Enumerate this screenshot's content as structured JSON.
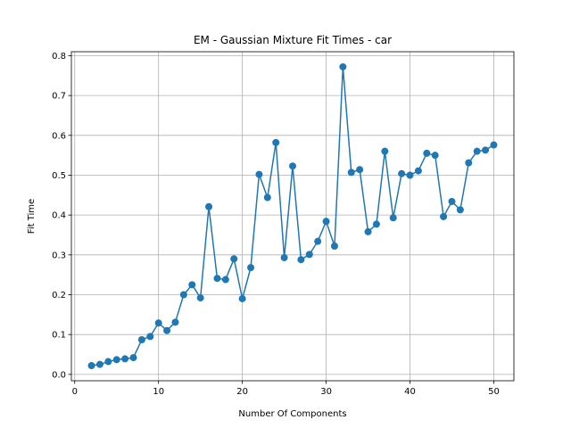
{
  "chart_data": {
    "type": "line",
    "title": "EM - Gaussian Mixture Fit Times - car",
    "xlabel": "Number Of Components",
    "ylabel": "Fit Time",
    "xlim": [
      -0.4,
      52.4
    ],
    "ylim": [
      -0.016,
      0.81
    ],
    "xticks": [
      0,
      10,
      20,
      30,
      40,
      50
    ],
    "yticks": [
      0.0,
      0.1,
      0.2,
      0.3,
      0.4,
      0.5,
      0.6,
      0.7,
      0.8
    ],
    "xtick_labels": [
      "0",
      "10",
      "20",
      "30",
      "40",
      "50"
    ],
    "ytick_labels": [
      "0.0",
      "0.1",
      "0.2",
      "0.3",
      "0.4",
      "0.5",
      "0.6",
      "0.7",
      "0.8"
    ],
    "grid": true,
    "marker": "circle",
    "color": "#1f77b4",
    "series": [
      {
        "x": [
          2,
          3,
          4,
          5,
          6,
          7,
          8,
          9,
          10,
          11,
          12,
          13,
          14,
          15,
          16,
          17,
          18,
          19,
          20,
          21,
          22,
          23,
          24,
          25,
          26,
          27,
          28,
          29,
          30,
          31,
          32,
          33,
          34,
          35,
          36,
          37,
          38,
          39,
          40,
          41,
          42,
          43,
          44,
          45,
          46,
          47,
          48,
          49,
          50
        ],
        "values": [
          0.022,
          0.025,
          0.032,
          0.037,
          0.039,
          0.042,
          0.087,
          0.095,
          0.129,
          0.11,
          0.131,
          0.2,
          0.225,
          0.192,
          0.421,
          0.241,
          0.238,
          0.29,
          0.19,
          0.268,
          0.502,
          0.444,
          0.582,
          0.293,
          0.523,
          0.288,
          0.301,
          0.334,
          0.384,
          0.322,
          0.772,
          0.507,
          0.514,
          0.358,
          0.377,
          0.56,
          0.393,
          0.504,
          0.5,
          0.511,
          0.555,
          0.55,
          0.396,
          0.434,
          0.413,
          0.531,
          0.56,
          0.563,
          0.576
        ]
      }
    ]
  }
}
